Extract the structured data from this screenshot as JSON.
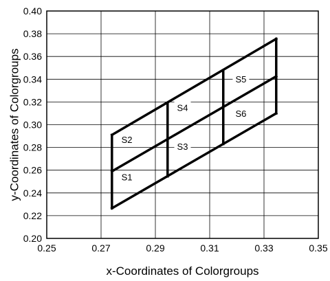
{
  "chart_data": {
    "type": "line",
    "title": "",
    "xlabel": "x-Coordinates of Colorgroups",
    "ylabel": "y-Coordinates of Colorgroups",
    "xlim": [
      0.25,
      0.35
    ],
    "ylim": [
      0.2,
      0.4
    ],
    "x_ticks": [
      "0.25",
      "0.27",
      "0.29",
      "0.31",
      "0.33",
      "0.35"
    ],
    "y_ticks": [
      "0.20",
      "0.22",
      "0.24",
      "0.26",
      "0.28",
      "0.30",
      "0.32",
      "0.34",
      "0.36",
      "0.38",
      "0.40"
    ],
    "grid": true,
    "series": [
      {
        "x": [
          0.274,
          0.3345
        ],
        "y": [
          0.2265,
          0.31
        ]
      },
      {
        "x": [
          0.274,
          0.3345
        ],
        "y": [
          0.259,
          0.3425
        ]
      },
      {
        "x": [
          0.274,
          0.3345
        ],
        "y": [
          0.291,
          0.3755
        ]
      },
      {
        "x": [
          0.274,
          0.274
        ],
        "y": [
          0.2265,
          0.291
        ]
      },
      {
        "x": [
          0.2945,
          0.2945
        ],
        "y": [
          0.2545,
          0.319
        ]
      },
      {
        "x": [
          0.315,
          0.315
        ],
        "y": [
          0.283,
          0.347
        ]
      },
      {
        "x": [
          0.3345,
          0.3345
        ],
        "y": [
          0.31,
          0.3755
        ]
      }
    ],
    "annotations": [
      {
        "text": "S1",
        "x": 0.2795,
        "y": 0.2535
      },
      {
        "text": "S2",
        "x": 0.2795,
        "y": 0.2865
      },
      {
        "text": "S3",
        "x": 0.3,
        "y": 0.2805
      },
      {
        "text": "S4",
        "x": 0.3,
        "y": 0.3145
      },
      {
        "text": "S5",
        "x": 0.3215,
        "y": 0.3395
      },
      {
        "text": "S6",
        "x": 0.3215,
        "y": 0.3095
      }
    ]
  }
}
